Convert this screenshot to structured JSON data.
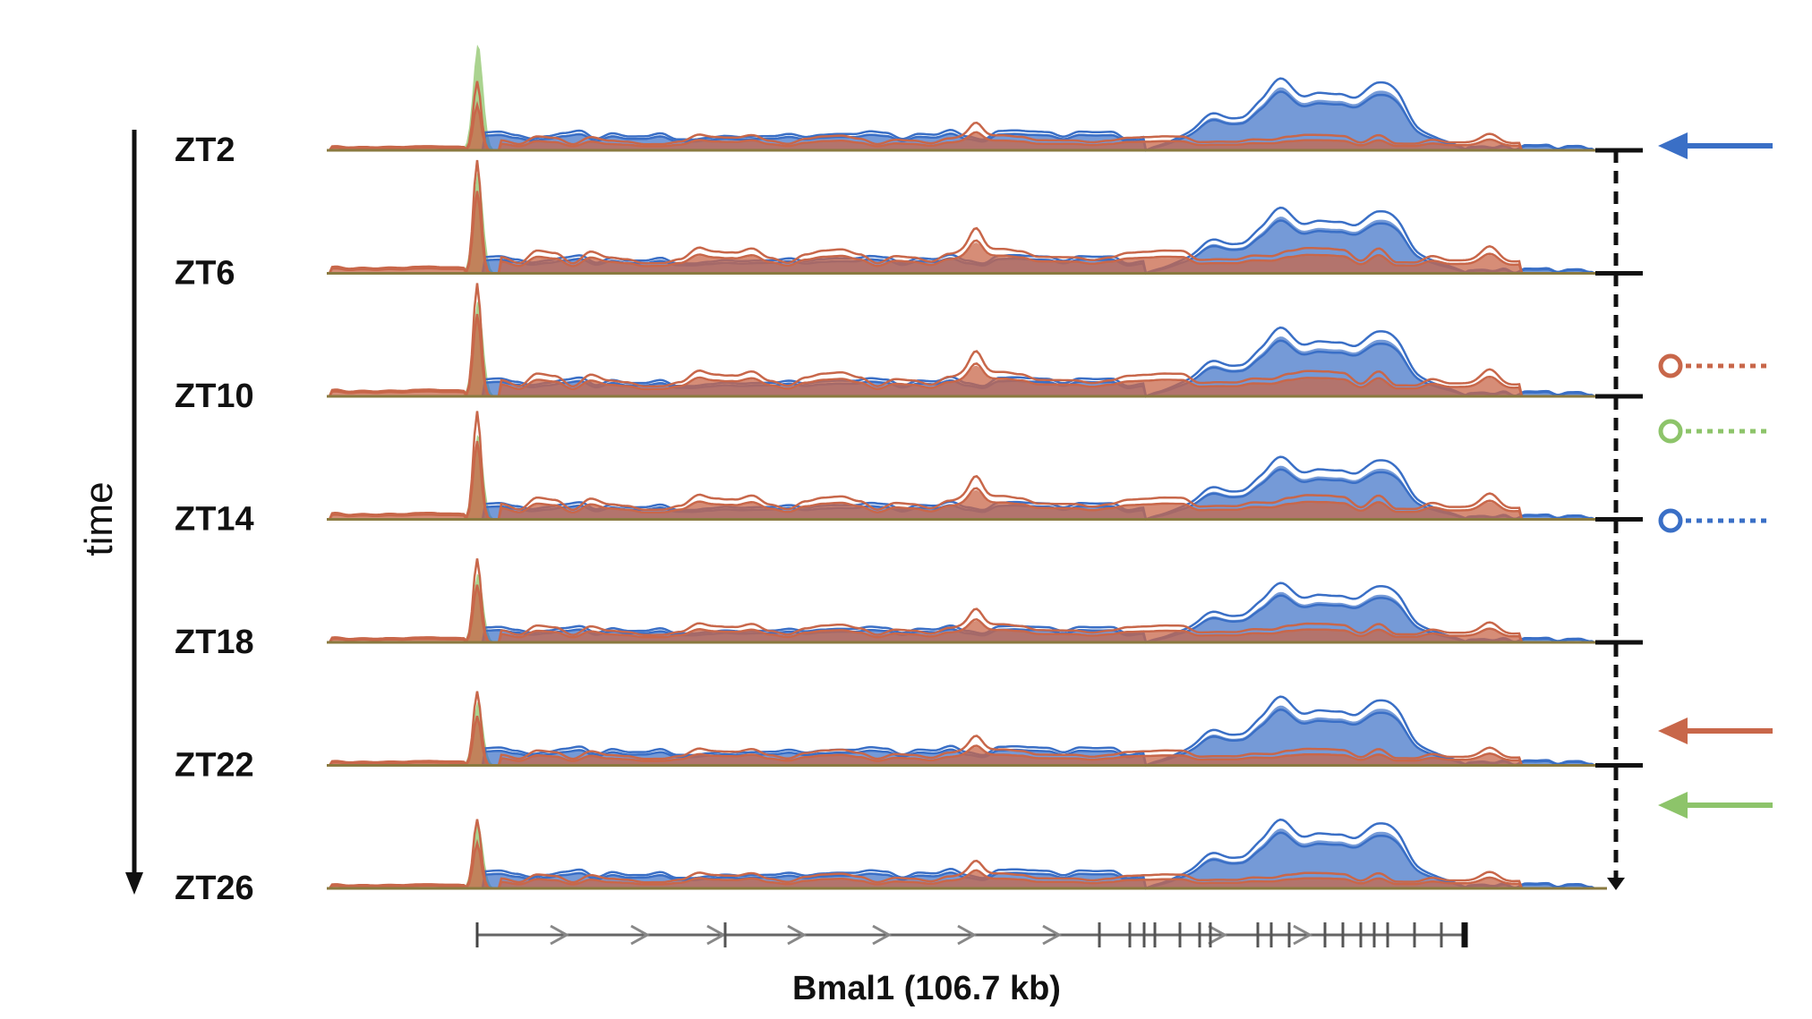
{
  "axis": {
    "time_label": "time"
  },
  "tracks": [
    {
      "label": "ZT2",
      "blue": 1.0,
      "orange": 0.55,
      "green": 1.0
    },
    {
      "label": "ZT6",
      "blue": 0.9,
      "orange": 1.0,
      "green": 0.95
    },
    {
      "label": "ZT10",
      "blue": 0.95,
      "orange": 1.0,
      "green": 0.9
    },
    {
      "label": "ZT14",
      "blue": 0.85,
      "orange": 0.95,
      "green": 0.8
    },
    {
      "label": "ZT18",
      "blue": 0.8,
      "orange": 0.7,
      "green": 0.65
    },
    {
      "label": "ZT22",
      "blue": 0.95,
      "orange": 0.6,
      "green": 0.6
    },
    {
      "label": "ZT26",
      "blue": 0.95,
      "orange": 0.55,
      "green": 0.6
    }
  ],
  "gene": {
    "label": "Bmal1 (106.7 kb)"
  },
  "colors": {
    "blue": "#3a6fc6",
    "orange": "#c8674a",
    "green": "#8dc46a",
    "black": "#111111"
  },
  "legend": [
    {
      "type": "arrow",
      "color": "blue",
      "track": 0
    },
    {
      "type": "circle",
      "color": "orange",
      "track": 2
    },
    {
      "type": "circle",
      "color": "green",
      "track": 2
    },
    {
      "type": "circle",
      "color": "blue",
      "track": 3
    },
    {
      "type": "arrow",
      "color": "orange",
      "track": 5
    },
    {
      "type": "arrow",
      "color": "green",
      "track": 5
    }
  ]
}
